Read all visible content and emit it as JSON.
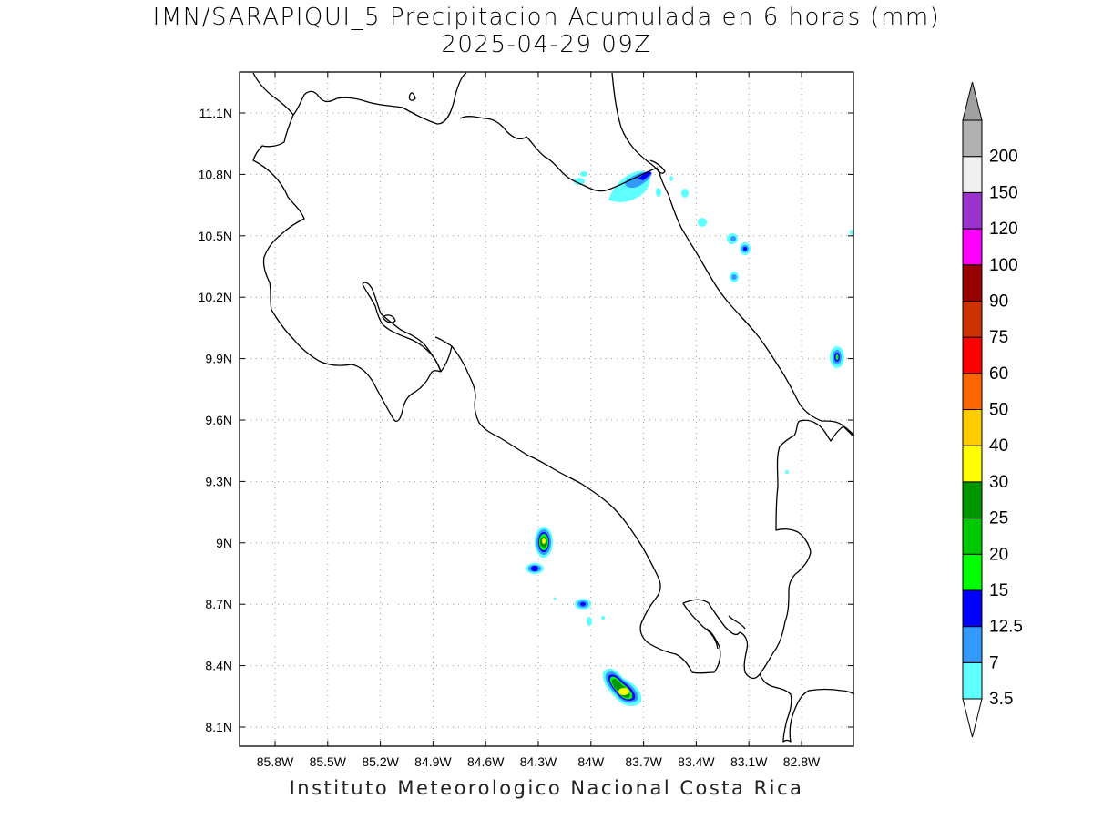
{
  "title": {
    "line1": "IMN/SARAPIQUI_5 Precipitacion Acumulada en 6 horas (mm)",
    "line2": "2025-04-29 09Z"
  },
  "footer": "Instituto Meteorologico Nacional Costa Rica",
  "axes": {
    "lon_ticks": [
      "85.8W",
      "85.5W",
      "85.2W",
      "84.9W",
      "84.6W",
      "84.3W",
      "84W",
      "83.7W",
      "83.4W",
      "83.1W",
      "82.8W"
    ],
    "lat_ticks": [
      "11.1N",
      "10.8N",
      "10.5N",
      "10.2N",
      "9.9N",
      "9.6N",
      "9.3N",
      "9N",
      "8.7N",
      "8.4N",
      "8.1N"
    ]
  },
  "colorbar": {
    "labels": [
      "3.5",
      "7",
      "12.5",
      "15",
      "20",
      "25",
      "30",
      "40",
      "50",
      "60",
      "75",
      "90",
      "100",
      "120",
      "150",
      "200"
    ],
    "colors": [
      "#60ffff",
      "#3399ff",
      "#0000ff",
      "#00ff00",
      "#00c800",
      "#009600",
      "#ffff00",
      "#ffcc00",
      "#ff6600",
      "#ff0000",
      "#cc3300",
      "#990000",
      "#ff00ff",
      "#9933cc",
      "#f0f0f0",
      "#b0b0b0"
    ]
  }
}
